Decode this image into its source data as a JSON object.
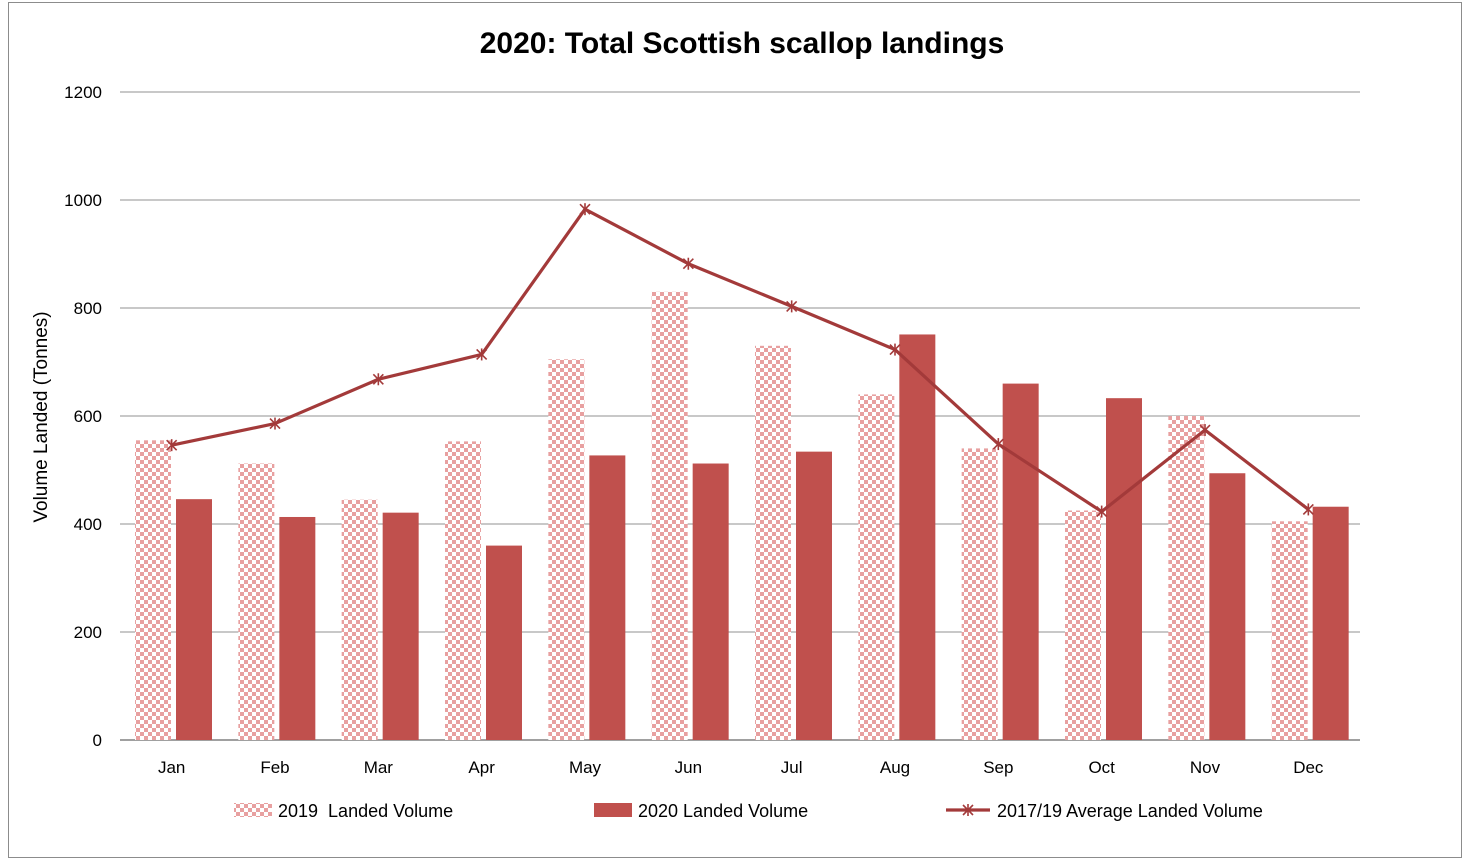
{
  "chart_data": {
    "type": "bar",
    "title": "2020: Total Scottish scallop landings",
    "xlabel": "",
    "ylabel": "Volume Landed (Tonnes)",
    "ylim": [
      0,
      1200
    ],
    "yticks": [
      0,
      200,
      400,
      600,
      800,
      1000,
      1200
    ],
    "grid": true,
    "legend_position": "bottom",
    "categories": [
      "Jan",
      "Feb",
      "Mar",
      "Apr",
      "May",
      "Jun",
      "Jul",
      "Aug",
      "Sep",
      "Oct",
      "Nov",
      "Dec"
    ],
    "series": [
      {
        "name": "2019  Landed Volume",
        "type": "bar",
        "style": "checkered",
        "color": "#e8a0a0",
        "values": [
          555,
          512,
          445,
          553,
          705,
          830,
          730,
          640,
          540,
          425,
          600,
          405
        ]
      },
      {
        "name": "2020 Landed Volume",
        "type": "bar",
        "style": "solid",
        "color": "#c0504d",
        "values": [
          446,
          413,
          421,
          360,
          527,
          512,
          534,
          751,
          660,
          633,
          494,
          432
        ]
      },
      {
        "name": "2017/19 Average Landed Volume",
        "type": "line",
        "marker": "star",
        "color": "#a33a3a",
        "values": [
          546,
          586,
          668,
          714,
          983,
          882,
          803,
          723,
          548,
          423,
          574,
          427
        ]
      }
    ]
  }
}
